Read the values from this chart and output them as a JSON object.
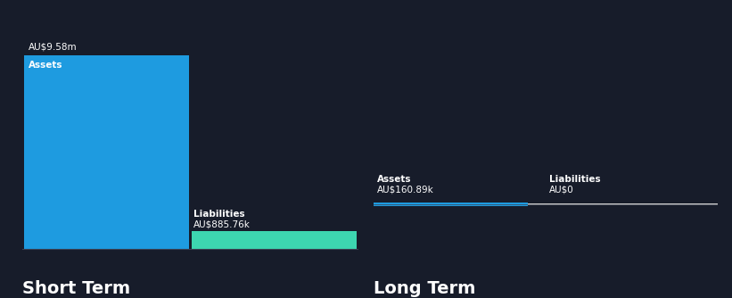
{
  "background_color": "#171c2a",
  "short_term": {
    "assets_value": 9580000,
    "liabilities_value": 885760,
    "assets_label": "Assets",
    "liabilities_label": "Liabilities",
    "assets_display": "AU$9.58m",
    "liabilities_display": "AU$885.76k",
    "assets_color": "#1e9be0",
    "liabilities_color": "#3dd6b0"
  },
  "long_term": {
    "assets_value": 160890,
    "liabilities_value": 0,
    "total_for_scale": 9580000,
    "assets_label": "Assets",
    "liabilities_label": "Liabilities",
    "assets_display": "AU$160.89k",
    "liabilities_display": "AU$0",
    "assets_color": "#1e9be0",
    "liabilities_color": "#cccccc"
  },
  "short_term_title": "Short Term",
  "long_term_title": "Long Term",
  "text_color": "#ffffff",
  "title_fontsize": 14,
  "label_fontsize": 7.5,
  "value_fontsize": 7.5,
  "baseline_color": "#3a3f50"
}
